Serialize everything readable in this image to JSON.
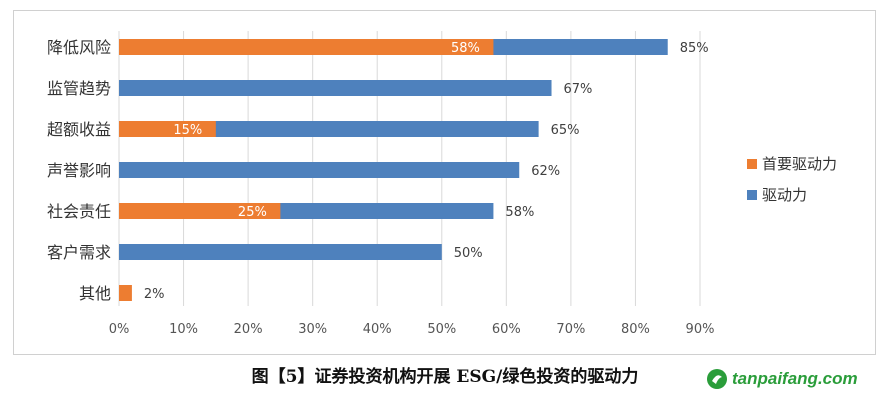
{
  "caption": "图【5】证券投资机构开展 ESG/绿色投资的驱动力",
  "watermark": {
    "text": "tanpaifang.com"
  },
  "colors": {
    "primary": "#ED7D31",
    "driver": "#4E81BD"
  },
  "chart_data": {
    "type": "bar",
    "orientation": "horizontal",
    "categories": [
      "降低风险",
      "监管趋势",
      "超额收益",
      "声誉影响",
      "社会责任",
      "客户需求",
      "其他"
    ],
    "series": [
      {
        "name": "首要驱动力",
        "values": [
          58,
          null,
          15,
          null,
          25,
          null,
          2
        ],
        "labels": [
          "58%",
          "",
          "15%",
          "",
          "25%",
          "",
          "2%"
        ]
      },
      {
        "name": "驱动力",
        "values": [
          85,
          67,
          65,
          62,
          58,
          50,
          null
        ],
        "labels": [
          "85%",
          "67%",
          "65%",
          "62%",
          "58%",
          "50%",
          ""
        ]
      }
    ],
    "x_ticks": [
      "0%",
      "10%",
      "20%",
      "30%",
      "40%",
      "50%",
      "60%",
      "70%",
      "80%",
      "90%"
    ],
    "xlim": [
      0,
      90
    ],
    "grid": true,
    "legend_position": "right"
  }
}
